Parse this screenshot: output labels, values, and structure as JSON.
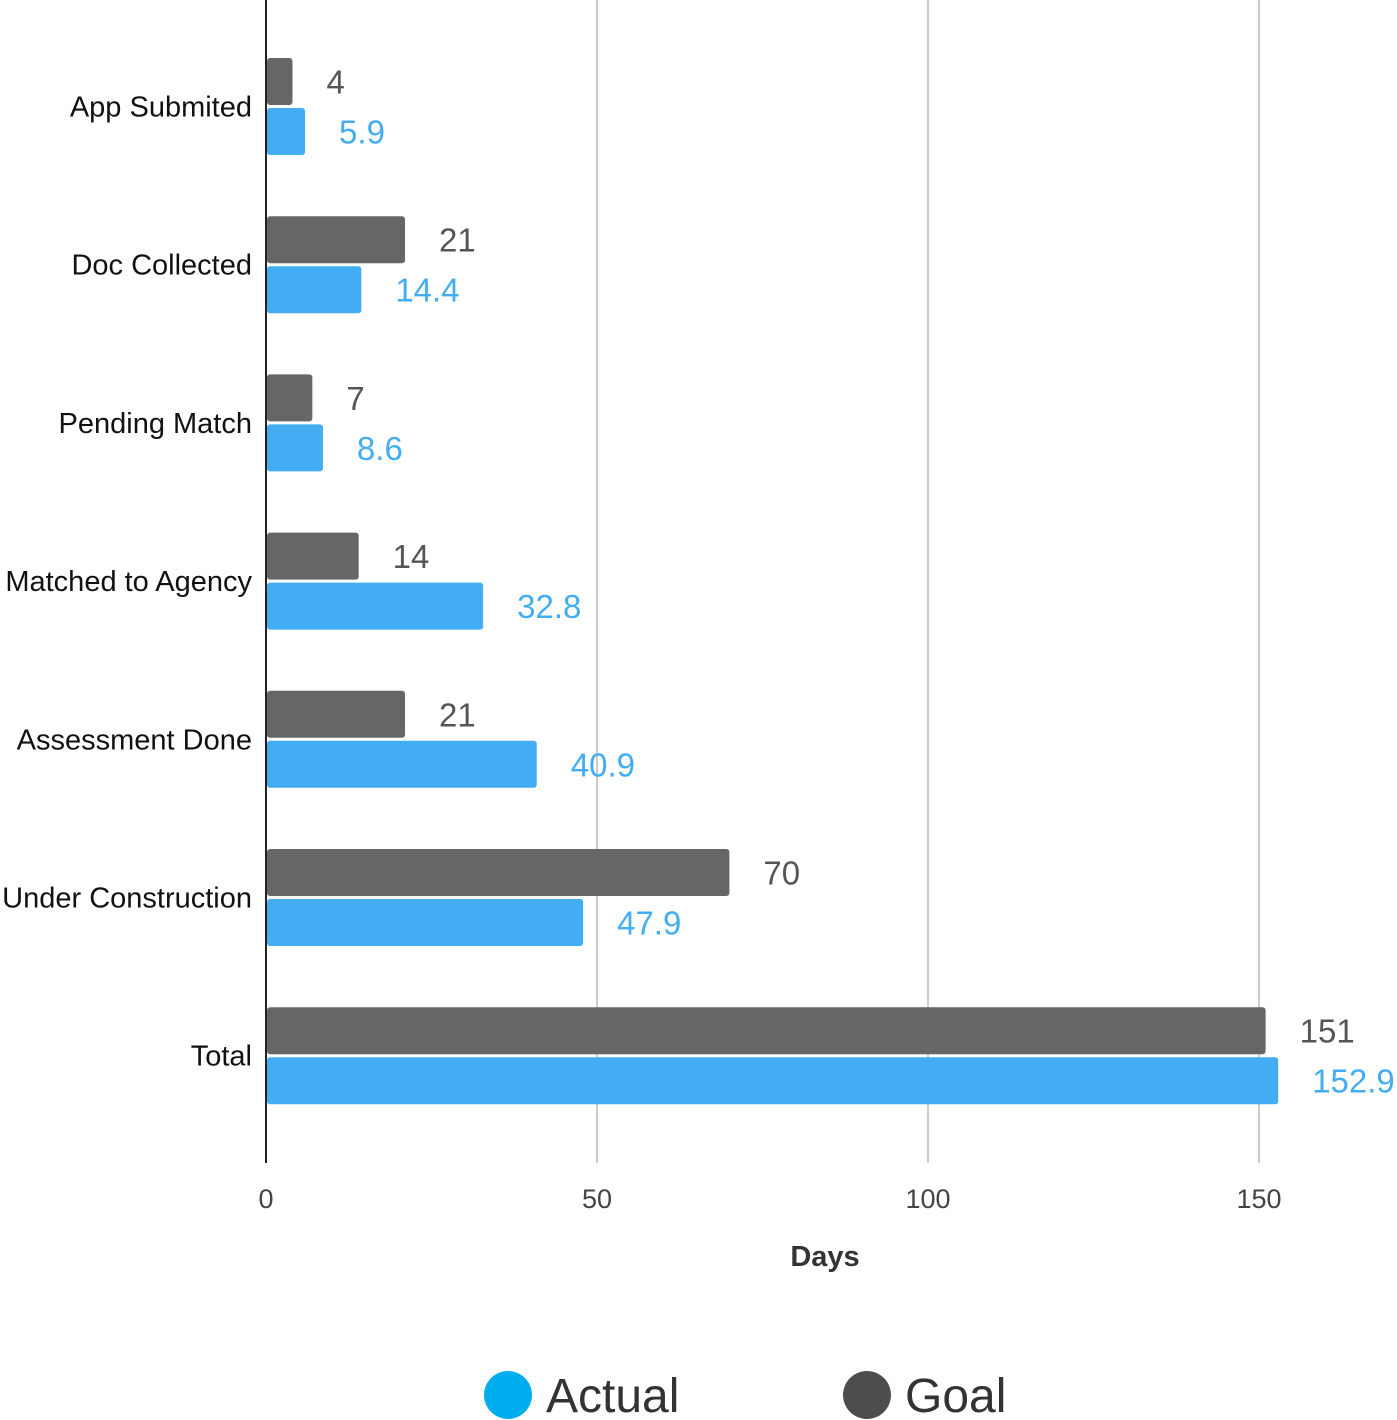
{
  "chart_data": {
    "type": "bar",
    "orientation": "horizontal",
    "categories": [
      "App Submited",
      "Doc Collected",
      "Pending Match",
      "Matched to Agency",
      "Assessment Done",
      "Under Construction",
      "Total"
    ],
    "series": [
      {
        "name": "Goal",
        "color": "#666666",
        "values": [
          4,
          21,
          7,
          14,
          21,
          70,
          151
        ]
      },
      {
        "name": "Actual",
        "color": "#42ADF3",
        "values": [
          5.9,
          14.4,
          8.6,
          32.8,
          40.9,
          47.9,
          152.9
        ]
      }
    ],
    "value_label_colors": {
      "Goal": "#555555",
      "Actual": "#42ADF3"
    },
    "title": "",
    "xlabel": "Days",
    "ylabel": "",
    "xlim": [
      0,
      170
    ],
    "xticks": [
      0,
      50,
      100,
      150
    ],
    "grid": true,
    "legend": {
      "placement": "bottom-center",
      "items": [
        {
          "name": "Actual",
          "color": "#00AEEF"
        },
        {
          "name": "Goal",
          "color": "#4D4D4D"
        }
      ]
    }
  }
}
